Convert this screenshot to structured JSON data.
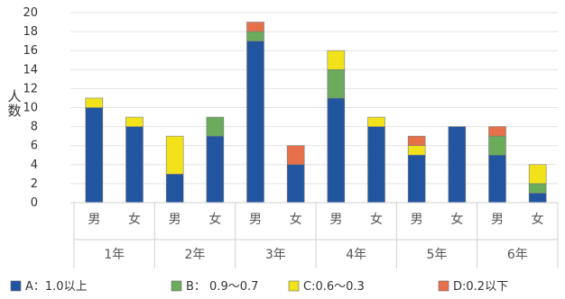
{
  "chart_data": {
    "type": "bar",
    "stacked": true,
    "ylabel": "人数",
    "ylim": [
      0,
      20
    ],
    "yticks": [
      0,
      2,
      4,
      6,
      8,
      10,
      12,
      14,
      16,
      18,
      20
    ],
    "grid": true,
    "groups": [
      "1年",
      "2年",
      "3年",
      "4年",
      "5年",
      "6年"
    ],
    "categories": [
      "男",
      "女",
      "男",
      "女",
      "男",
      "女",
      "男",
      "女",
      "男",
      "女",
      "男",
      "女"
    ],
    "series": [
      {
        "name": "A：1.0以上",
        "color": "#2255a0",
        "values": [
          10,
          8,
          3,
          7,
          17,
          4,
          11,
          8,
          5,
          8,
          5,
          1
        ]
      },
      {
        "name": "B： 0.9～0.7",
        "color": "#6aac5c",
        "values": [
          0,
          0,
          0,
          2,
          1,
          0,
          3,
          0,
          0,
          0,
          2,
          1
        ]
      },
      {
        "name": "C:0.6～0.3",
        "color": "#f2e21a",
        "values": [
          1,
          1,
          4,
          0,
          0,
          0,
          2,
          1,
          1,
          0,
          0,
          2
        ]
      },
      {
        "name": "D:0.2以下",
        "color": "#e5704a",
        "values": [
          0,
          0,
          0,
          0,
          1,
          2,
          0,
          0,
          1,
          0,
          1,
          0
        ]
      }
    ],
    "legend_position": "bottom"
  }
}
